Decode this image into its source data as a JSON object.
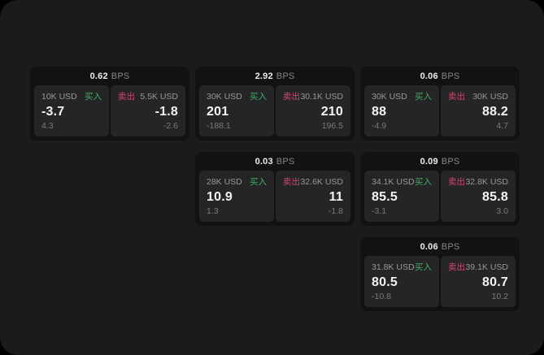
{
  "labels": {
    "bps_unit": "BPS",
    "buy": "买入",
    "sell": "卖出"
  },
  "colors": {
    "buy_accent": "#3fae63",
    "sell_accent": "#d2476b",
    "window_bg": "#1b1b1c",
    "card_bg": "#121213",
    "panel_bg": "#252527"
  },
  "cards": [
    {
      "bps": "0.62",
      "buy": {
        "amount": "10K USD",
        "price": "-3.7",
        "delta": "4.3"
      },
      "sell": {
        "amount": "5.5K USD",
        "price": "-1.8",
        "delta": "-2.6"
      }
    },
    {
      "bps": "2.92",
      "buy": {
        "amount": "30K USD",
        "price": "201",
        "delta": "-188.1"
      },
      "sell": {
        "amount": "30.1K USD",
        "price": "210",
        "delta": "196.5"
      }
    },
    {
      "bps": "0.06",
      "buy": {
        "amount": "30K USD",
        "price": "88",
        "delta": "-4.9"
      },
      "sell": {
        "amount": "30K USD",
        "price": "88.2",
        "delta": "4.7"
      }
    },
    {
      "bps": "0.03",
      "buy": {
        "amount": "28K USD",
        "price": "10.9",
        "delta": "1.3"
      },
      "sell": {
        "amount": "32.6K USD",
        "price": "11",
        "delta": "-1.8"
      }
    },
    {
      "bps": "0.09",
      "buy": {
        "amount": "34.1K USD",
        "price": "85.5",
        "delta": "-3.1"
      },
      "sell": {
        "amount": "32.8K USD",
        "price": "85.8",
        "delta": "3.0"
      }
    },
    {
      "bps": "0.06",
      "buy": {
        "amount": "31.8K USD",
        "price": "80.5",
        "delta": "-10.8"
      },
      "sell": {
        "amount": "39.1K USD",
        "price": "80.7",
        "delta": "10.2"
      }
    }
  ]
}
